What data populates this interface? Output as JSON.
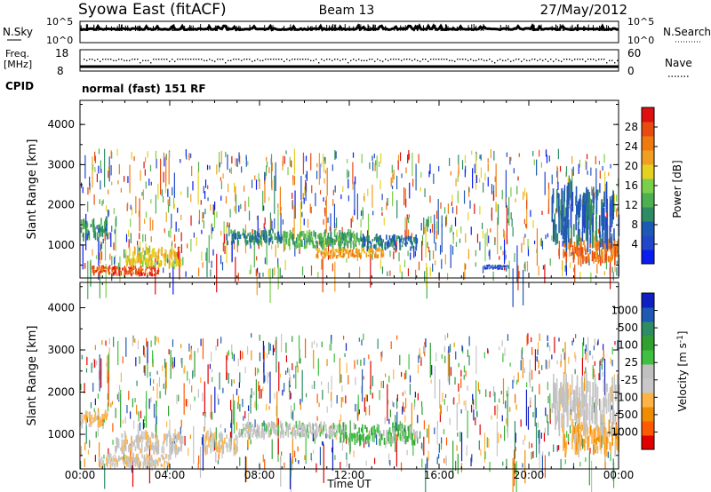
{
  "header": {
    "title": "Syowa East (fitACF)",
    "beam": "Beam 13",
    "date": "27/May/2012"
  },
  "noise_panel": {
    "left_label": "N.Sky",
    "right_label": "N.Search",
    "left_ticks": [
      "10^5",
      "10^0"
    ],
    "right_ticks": [
      "10^5",
      "10^0"
    ]
  },
  "freq_panel": {
    "left_label_line1": "Freq.",
    "left_label_line2": "[MHz]",
    "cpid_label": "CPID",
    "right_label": "Nave",
    "left_ticks": [
      "18",
      "8"
    ],
    "right_ticks": [
      "60",
      "0"
    ],
    "cpid_text": "normal (fast) 151 RF"
  },
  "colors": {
    "power_scale": [
      "#0a1cf0",
      "#2048c8",
      "#1e5ab4",
      "#2e8c64",
      "#4caf50",
      "#7ccf4a",
      "#e6d020",
      "#f0a020",
      "#f07a10",
      "#e84a10",
      "#e01010"
    ],
    "velocity_scale": [
      "#e00000",
      "#ff5a00",
      "#f08c00",
      "#ffb347",
      "#c8c8c8",
      "#c0c0c0",
      "#40c040",
      "#30a030",
      "#2e8c64",
      "#1e5ab4",
      "#1020c0"
    ]
  },
  "chart_data": [
    {
      "type": "heatmap",
      "parameter": "Power",
      "ylabel": "Slant Range [km]",
      "yticks": [
        "4000",
        "3000",
        "2000",
        "1000"
      ],
      "ylim": [
        180,
        4600
      ],
      "colorbar": {
        "label": "Power [dB]",
        "ticks": [
          "28",
          "24",
          "20",
          "16",
          "12",
          "8",
          "4"
        ],
        "range": [
          0,
          30
        ]
      },
      "regions": [
        {
          "t0": 0.0,
          "t1": 1.2,
          "r0": 1200,
          "r1": 1600,
          "value": 10
        },
        {
          "t0": 0.5,
          "t1": 3.5,
          "r0": 250,
          "r1": 450,
          "value": 26
        },
        {
          "t0": 2.0,
          "t1": 4.5,
          "r0": 500,
          "r1": 900,
          "value": 18
        },
        {
          "t0": 6.5,
          "t1": 9.0,
          "r0": 1050,
          "r1": 1350,
          "value": 9
        },
        {
          "t0": 9.0,
          "t1": 12.5,
          "r0": 950,
          "r1": 1300,
          "value": 12
        },
        {
          "t0": 12.5,
          "t1": 15.0,
          "r0": 900,
          "r1": 1200,
          "value": 8
        },
        {
          "t0": 10.5,
          "t1": 13.5,
          "r0": 700,
          "r1": 900,
          "value": 21
        },
        {
          "t0": 18.0,
          "t1": 19.0,
          "r0": 400,
          "r1": 500,
          "value": 5
        },
        {
          "t0": 21.5,
          "t1": 24.0,
          "r0": 600,
          "r1": 1100,
          "value": 24
        },
        {
          "t0": 21.0,
          "t1": 24.0,
          "r0": 1100,
          "r1": 2300,
          "value": 7
        }
      ]
    },
    {
      "type": "heatmap",
      "parameter": "Velocity",
      "xlabel": "Time UT",
      "ylabel": "Slant Range [km]",
      "xticks": [
        "00:00",
        "04:00",
        "08:00",
        "12:00",
        "16:00",
        "20:00",
        "00:00"
      ],
      "xlim": [
        0,
        24
      ],
      "yticks": [
        "4000",
        "3000",
        "2000",
        "1000"
      ],
      "ylim": [
        180,
        4600
      ],
      "colorbar": {
        "label": "Velocity [m s^-1]",
        "ticks": [
          "1000",
          "500",
          "100",
          "25",
          "-25",
          "-100",
          "-500",
          "-1000"
        ],
        "range": [
          -1000,
          1000
        ]
      },
      "regions": [
        {
          "t0": 0.0,
          "t1": 1.2,
          "r0": 1200,
          "r1": 1500,
          "value": -300
        },
        {
          "t0": 0.8,
          "t1": 4.0,
          "r0": 250,
          "r1": 500,
          "value": -200
        },
        {
          "t0": 1.5,
          "t1": 4.5,
          "r0": 600,
          "r1": 1000,
          "value": -150
        },
        {
          "t0": 5.5,
          "t1": 7.0,
          "r0": 600,
          "r1": 1000,
          "value": -200
        },
        {
          "t0": 7.0,
          "t1": 11.5,
          "r0": 950,
          "r1": 1250,
          "value": 0
        },
        {
          "t0": 11.5,
          "t1": 15.0,
          "r0": 800,
          "r1": 1200,
          "value": 150
        },
        {
          "t0": 21.5,
          "t1": 24.0,
          "r0": 600,
          "r1": 1200,
          "value": -400
        },
        {
          "t0": 21.0,
          "t1": 24.0,
          "r0": 1200,
          "r1": 2200,
          "value": -120
        }
      ]
    }
  ]
}
